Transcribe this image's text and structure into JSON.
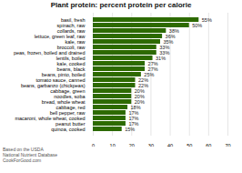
{
  "chart_data": {
    "type": "bar",
    "orientation": "horizontal",
    "title": "Plant protein: percent protein per calorie",
    "annotations": [
      "Based on the USDA\nNational Nutrient Database\nCookForGood.com"
    ],
    "categories": [
      "quinoa, cooked",
      "peanut butter",
      "macaroni, whole wheat, cooked",
      "bell pepper, raw",
      "cabbage, red",
      "bread, whole wheat",
      "noodles, soba",
      "cabbage, green",
      "beans, garbanzo (chickpeas)",
      "tomato sauce, canned",
      "beans, pinto, boiled",
      "beans, black",
      "kale, cooked",
      "lentils, boiled",
      "peas, frozen, boiled and drained",
      "broccoli, raw",
      "kale, raw",
      "lettuce, green leaf, raw",
      "collards, raw",
      "spinach, raw",
      "basil, fresh"
    ],
    "values": [
      15,
      17,
      17,
      17,
      18,
      20,
      20,
      20,
      22,
      22,
      25,
      27,
      27,
      31,
      33,
      33,
      35,
      36,
      38,
      50,
      55
    ],
    "value_labels": [
      "15%",
      "17%",
      "17%",
      "17%",
      "18%",
      "20%",
      "20%",
      "20%",
      "22%",
      "22%",
      "25%",
      "27%",
      "27%",
      "31%",
      "33%",
      "33%",
      "35%",
      "36%",
      "38%",
      "50%",
      "55%"
    ],
    "data_labels": true,
    "color": "#2d6a00",
    "xlim": [
      0,
      70
    ],
    "xticks": [
      0,
      10,
      20,
      30,
      40,
      50,
      60,
      70
    ],
    "grid": true
  }
}
